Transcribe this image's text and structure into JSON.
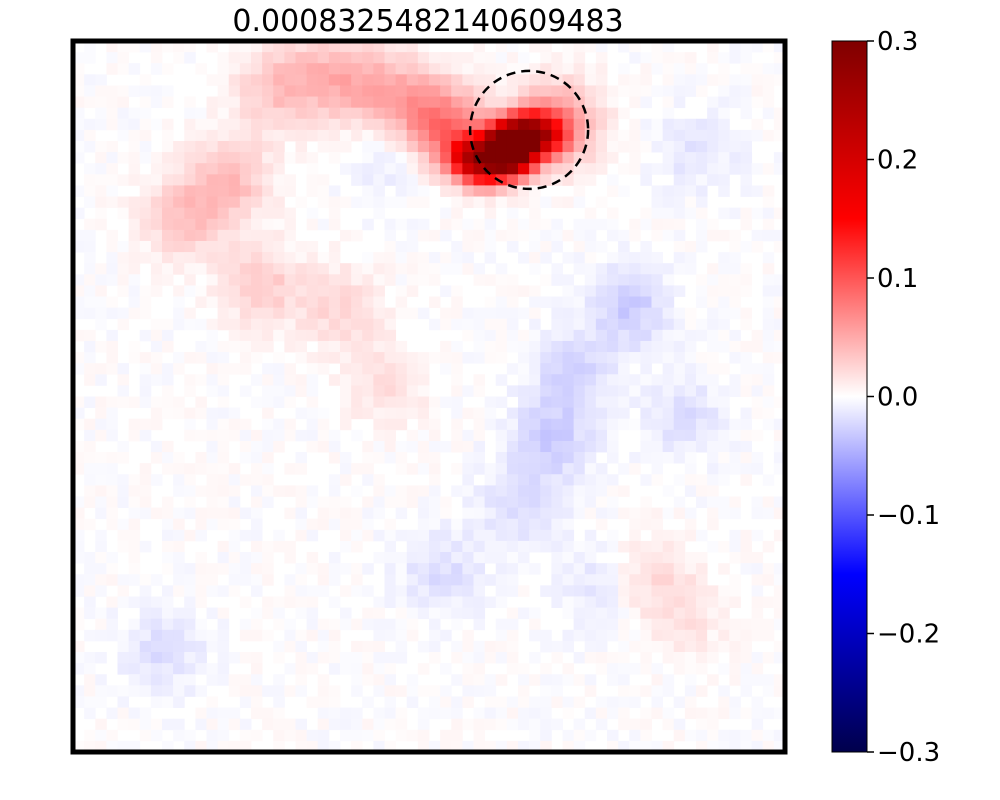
{
  "chart_data": {
    "type": "heatmap",
    "title": "0.000832548214060948​3",
    "grid": false,
    "xlabel": "",
    "ylabel": "",
    "colormap": "seismic",
    "colorbar": {
      "vmin": -0.3,
      "vmax": 0.3,
      "ticks": [
        0.3,
        0.2,
        0.1,
        0.0,
        -0.1,
        -0.2,
        -0.3
      ],
      "tick_labels": [
        "0.3",
        "0.2",
        "0.1",
        "0.0",
        "−0.1",
        "−0.2",
        "−0.3"
      ]
    },
    "grid_size": [
      64,
      64
    ],
    "highlight": {
      "shape": "dashed circle",
      "center": [
        41,
        8
      ],
      "radius": 5.3
    },
    "hotspots": [
      {
        "x": 38.5,
        "y": 9.5,
        "value": 0.28
      },
      {
        "x": 39.5,
        "y": 10.5,
        "value": 0.22
      },
      {
        "x": 40.5,
        "y": 8.5,
        "value": 0.24
      },
      {
        "x": 42.5,
        "y": 8.5,
        "value": 0.12
      },
      {
        "x": 43.5,
        "y": 7.5,
        "value": 0.07
      },
      {
        "x": 35.5,
        "y": 10.5,
        "value": 0.15
      },
      {
        "x": 33.5,
        "y": 8.0,
        "value": 0.08
      },
      {
        "x": 37.0,
        "y": 11.5,
        "value": 0.12
      },
      {
        "x": 30.0,
        "y": 5.5,
        "value": 0.04
      },
      {
        "x": 26.0,
        "y": 4.0,
        "value": 0.035
      },
      {
        "x": 22.0,
        "y": 3.0,
        "value": 0.03
      },
      {
        "x": 18.0,
        "y": 4.5,
        "value": 0.03
      },
      {
        "x": 14.0,
        "y": 12.5,
        "value": 0.04
      },
      {
        "x": 10.0,
        "y": 16.0,
        "value": 0.035
      },
      {
        "x": 17.0,
        "y": 22.0,
        "value": 0.03
      },
      {
        "x": 24.0,
        "y": 24.0,
        "value": 0.025
      },
      {
        "x": 28.0,
        "y": 31.0,
        "value": 0.02
      },
      {
        "x": 52.0,
        "y": 48.0,
        "value": 0.02
      },
      {
        "x": 55.0,
        "y": 52.0,
        "value": 0.015
      },
      {
        "x": 50.0,
        "y": 24.0,
        "value": -0.03
      },
      {
        "x": 45.0,
        "y": 30.0,
        "value": -0.025
      },
      {
        "x": 43.0,
        "y": 36.0,
        "value": -0.03
      },
      {
        "x": 40.0,
        "y": 42.0,
        "value": -0.02
      },
      {
        "x": 33.0,
        "y": 48.0,
        "value": -0.02
      },
      {
        "x": 47.0,
        "y": 49.0,
        "value": -0.015
      },
      {
        "x": 55.0,
        "y": 34.0,
        "value": -0.02
      },
      {
        "x": 8.0,
        "y": 55.0,
        "value": -0.02
      },
      {
        "x": 29.0,
        "y": 10.0,
        "value": -0.02
      },
      {
        "x": 56.0,
        "y": 10.0,
        "value": -0.015
      }
    ]
  }
}
